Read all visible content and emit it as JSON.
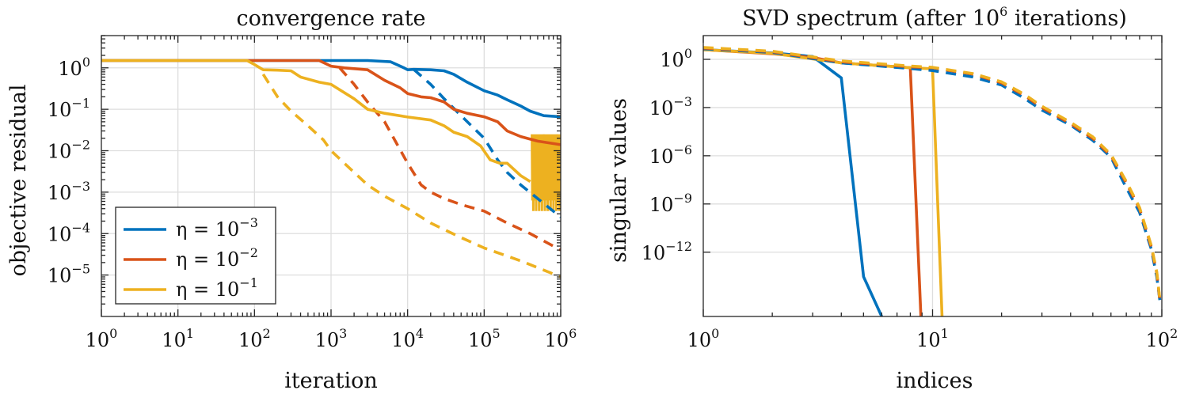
{
  "colors": {
    "blue": "#0072BD",
    "orange": "#D95319",
    "yellow": "#EDB120"
  },
  "chart_data": [
    {
      "type": "line",
      "title": "convergence rate",
      "xlabel": "iteration",
      "ylabel": "objective residual",
      "xscale": "log",
      "yscale": "log",
      "xlim": [
        1,
        1000000
      ],
      "ylim": [
        1e-06,
        6
      ],
      "xticks": [
        {
          "base": "10",
          "exp": "0",
          "value": 1
        },
        {
          "base": "10",
          "exp": "1",
          "value": 10
        },
        {
          "base": "10",
          "exp": "2",
          "value": 100
        },
        {
          "base": "10",
          "exp": "3",
          "value": 1000
        },
        {
          "base": "10",
          "exp": "4",
          "value": 10000
        },
        {
          "base": "10",
          "exp": "5",
          "value": 100000
        },
        {
          "base": "10",
          "exp": "6",
          "value": 1000000
        }
      ],
      "yticks": [
        {
          "base": "10",
          "exp": "0",
          "value": 1
        },
        {
          "base": "10",
          "exp": "−1",
          "value": 0.1
        },
        {
          "base": "10",
          "exp": "−2",
          "value": 0.01
        },
        {
          "base": "10",
          "exp": "−3",
          "value": 0.001
        },
        {
          "base": "10",
          "exp": "−4",
          "value": 0.0001
        },
        {
          "base": "10",
          "exp": "−5",
          "value": 1e-05
        }
      ],
      "legend": {
        "position": "bottom-left",
        "entries": [
          {
            "label": "η = ",
            "exp": "−3",
            "color_key": "blue"
          },
          {
            "label": "η = ",
            "exp": "−2",
            "color_key": "orange"
          },
          {
            "label": "η = ",
            "exp": "−1",
            "color_key": "yellow"
          }
        ]
      },
      "series": [
        {
          "name": "η=1e-3 solid",
          "color_key": "blue",
          "dash": false,
          "points": [
            [
              1,
              1.5
            ],
            [
              3000,
              1.5
            ],
            [
              6000,
              1.4
            ],
            [
              9000,
              1.0
            ],
            [
              10000,
              0.9
            ],
            [
              12000,
              0.92
            ],
            [
              20000,
              0.9
            ],
            [
              30000,
              0.85
            ],
            [
              40000,
              0.7
            ],
            [
              60000,
              0.45
            ],
            [
              100000,
              0.28
            ],
            [
              150000,
              0.22
            ],
            [
              200000,
              0.17
            ],
            [
              300000,
              0.12
            ],
            [
              400000,
              0.09
            ],
            [
              600000,
              0.07
            ],
            [
              1000000,
              0.066
            ]
          ]
        },
        {
          "name": "η=1e-3 dashed",
          "color_key": "blue",
          "dash": true,
          "points": [
            [
              12000,
              0.92
            ],
            [
              20000,
              0.4
            ],
            [
              30000,
              0.18
            ],
            [
              50000,
              0.07
            ],
            [
              100000,
              0.02
            ],
            [
              150000,
              0.006
            ],
            [
              200000,
              0.003
            ],
            [
              300000,
              0.0015
            ],
            [
              500000,
              0.0007
            ],
            [
              1000000,
              0.00025
            ]
          ]
        },
        {
          "name": "η=1e-2 solid",
          "color_key": "orange",
          "dash": false,
          "points": [
            [
              1,
              1.5
            ],
            [
              700,
              1.5
            ],
            [
              1000,
              1.1
            ],
            [
              1500,
              1.0
            ],
            [
              3000,
              0.9
            ],
            [
              5000,
              0.5
            ],
            [
              8000,
              0.33
            ],
            [
              10000,
              0.24
            ],
            [
              15000,
              0.2
            ],
            [
              20000,
              0.19
            ],
            [
              30000,
              0.15
            ],
            [
              40000,
              0.1
            ],
            [
              60000,
              0.08
            ],
            [
              100000,
              0.066
            ],
            [
              150000,
              0.05
            ],
            [
              200000,
              0.03
            ],
            [
              300000,
              0.022
            ],
            [
              500000,
              0.017
            ],
            [
              1000000,
              0.014
            ]
          ]
        },
        {
          "name": "η=1e-2 dashed",
          "color_key": "orange",
          "dash": true,
          "points": [
            [
              1300,
              1.0
            ],
            [
              2000,
              0.4
            ],
            [
              3000,
              0.15
            ],
            [
              5000,
              0.05
            ],
            [
              10000,
              0.005
            ],
            [
              15000,
              0.0015
            ],
            [
              20000,
              0.001
            ],
            [
              30000,
              0.0007
            ],
            [
              50000,
              0.0005
            ],
            [
              100000,
              0.00035
            ],
            [
              200000,
              0.00018
            ],
            [
              400000,
              0.0001
            ],
            [
              1000000,
              4e-05
            ]
          ]
        },
        {
          "name": "η=1e-1 solid",
          "color_key": "yellow",
          "dash": false,
          "points": [
            [
              1,
              1.5
            ],
            [
              80,
              1.5
            ],
            [
              100,
              1.2
            ],
            [
              130,
              0.9
            ],
            [
              200,
              0.88
            ],
            [
              300,
              0.85
            ],
            [
              400,
              0.6
            ],
            [
              700,
              0.45
            ],
            [
              1000,
              0.4
            ],
            [
              2000,
              0.18
            ],
            [
              3000,
              0.1
            ],
            [
              5000,
              0.08
            ],
            [
              10000,
              0.065
            ],
            [
              20000,
              0.055
            ],
            [
              30000,
              0.04
            ],
            [
              40000,
              0.028
            ],
            [
              60000,
              0.022
            ],
            [
              90000,
              0.013
            ],
            [
              120000,
              0.006
            ],
            [
              160000,
              0.005
            ],
            [
              200000,
              0.005
            ],
            [
              300000,
              0.0025
            ],
            [
              400000,
              0.0018
            ]
          ]
        },
        {
          "name": "η=1e-1 dashed",
          "color_key": "yellow",
          "dash": true,
          "points": [
            [
              130,
              0.7
            ],
            [
              200,
              0.2
            ],
            [
              300,
              0.09
            ],
            [
              500,
              0.04
            ],
            [
              800,
              0.018
            ],
            [
              1000,
              0.01
            ],
            [
              2000,
              0.003
            ],
            [
              3000,
              0.0015
            ],
            [
              5000,
              0.0008
            ],
            [
              10000,
              0.0004
            ],
            [
              20000,
              0.00018
            ],
            [
              50000,
              8e-05
            ],
            [
              100000,
              4.5e-05
            ],
            [
              300000,
              2.2e-05
            ],
            [
              1000000,
              9e-06
            ]
          ]
        }
      ],
      "oscillation_band": {
        "color_key": "yellow",
        "x_range": [
          420000,
          1000000
        ],
        "y_range": [
          0.00035,
          0.025
        ]
      }
    },
    {
      "type": "line",
      "title_text": "SVD spectrum (after 10",
      "title_exp": "6",
      "title_tail": " iterations)",
      "xlabel": "indices",
      "ylabel": "singular values",
      "xscale": "log",
      "yscale": "log",
      "xlim": [
        1,
        100
      ],
      "ylim": [
        1e-16,
        30
      ],
      "xticks": [
        {
          "base": "10",
          "exp": "0",
          "value": 1
        },
        {
          "base": "10",
          "exp": "1",
          "value": 10
        },
        {
          "base": "10",
          "exp": "2",
          "value": 100
        }
      ],
      "yticks": [
        {
          "base": "10",
          "exp": "0",
          "value": 1
        },
        {
          "base": "10",
          "exp": "−3",
          "value": 0.001
        },
        {
          "base": "10",
          "exp": "−6",
          "value": 1e-06
        },
        {
          "base": "10",
          "exp": "−9",
          "value": 1e-09
        },
        {
          "base": "10",
          "exp": "−12",
          "value": 1e-12
        }
      ],
      "series": [
        {
          "name": "η=1e-3 solid",
          "color_key": "blue",
          "dash": false,
          "points": [
            [
              1,
              4
            ],
            [
              2,
              2.5
            ],
            [
              3,
              1.5
            ],
            [
              4,
              0.07
            ],
            [
              5,
              3e-14
            ],
            [
              6,
              1e-16
            ]
          ]
        },
        {
          "name": "η=1e-2 solid",
          "color_key": "orange",
          "dash": false,
          "points": [
            [
              1,
              4
            ],
            [
              2,
              2.2
            ],
            [
              3,
              1.3
            ],
            [
              4,
              0.6
            ],
            [
              6,
              0.4
            ],
            [
              8,
              0.3
            ],
            [
              8.9,
              1e-16
            ]
          ]
        },
        {
          "name": "η=1e-1 solid",
          "color_key": "yellow",
          "dash": false,
          "points": [
            [
              1,
              4
            ],
            [
              2,
              2.4
            ],
            [
              4,
              0.6
            ],
            [
              6,
              0.4
            ],
            [
              8,
              0.3
            ],
            [
              10,
              0.26
            ],
            [
              11,
              1e-16
            ]
          ]
        },
        {
          "name": "η=1e-3 dashed",
          "color_key": "blue",
          "dash": true,
          "points": [
            [
              1,
              4.5
            ],
            [
              2,
              2.7
            ],
            [
              4,
              0.6
            ],
            [
              8,
              0.27
            ],
            [
              10,
              0.2
            ],
            [
              15,
              0.08
            ],
            [
              20,
              0.025
            ],
            [
              25,
              0.004
            ],
            [
              30,
              0.0007
            ],
            [
              40,
              8e-05
            ],
            [
              50,
              9e-06
            ],
            [
              60,
              8e-07
            ],
            [
              70,
              1e-08
            ],
            [
              80,
              3e-10
            ],
            [
              90,
              1.5e-12
            ],
            [
              95,
              3e-14
            ],
            [
              98,
              1e-15
            ]
          ]
        },
        {
          "name": "η=1e-2 dashed",
          "color_key": "orange",
          "dash": true,
          "points": [
            [
              1,
              5
            ],
            [
              2,
              3
            ],
            [
              4,
              0.7
            ],
            [
              8,
              0.34
            ],
            [
              10,
              0.3
            ],
            [
              15,
              0.12
            ],
            [
              20,
              0.035
            ],
            [
              25,
              0.006
            ],
            [
              30,
              0.001
            ],
            [
              40,
              0.0001
            ],
            [
              50,
              1.2e-05
            ],
            [
              60,
              1e-06
            ],
            [
              70,
              2e-08
            ],
            [
              80,
              5e-10
            ],
            [
              90,
              2e-12
            ],
            [
              95,
              5e-14
            ],
            [
              98,
              1e-15
            ]
          ]
        },
        {
          "name": "η=1e-1 dashed",
          "color_key": "yellow",
          "dash": true,
          "points": [
            [
              1,
              5.5
            ],
            [
              2,
              3.2
            ],
            [
              4,
              0.8
            ],
            [
              8,
              0.38
            ],
            [
              10,
              0.32
            ],
            [
              15,
              0.13
            ],
            [
              20,
              0.04
            ],
            [
              25,
              0.007
            ],
            [
              30,
              0.0012
            ],
            [
              40,
              0.00012
            ],
            [
              50,
              1.5e-05
            ],
            [
              60,
              1.2e-06
            ],
            [
              70,
              2.5e-08
            ],
            [
              80,
              6e-10
            ],
            [
              90,
              2.5e-12
            ],
            [
              95,
              6e-14
            ],
            [
              98,
              1.2e-15
            ]
          ]
        }
      ]
    }
  ]
}
